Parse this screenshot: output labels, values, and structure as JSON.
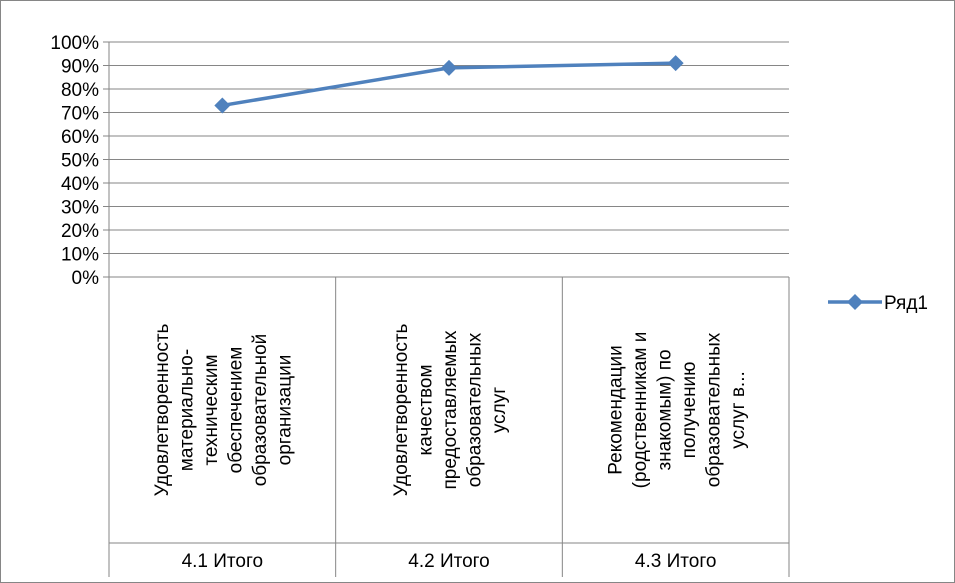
{
  "chart_data": {
    "type": "line",
    "categories": [
      {
        "lines": [
          "Удовлетворенность",
          "материально-",
          "техническим",
          "обеспечением",
          "образовательной",
          "организации"
        ],
        "group": "4.1 Итого"
      },
      {
        "lines": [
          "Удовлетворенность",
          "качеством",
          "предоставляемых",
          "образовательных",
          "услуг"
        ],
        "group": "4.2 Итого"
      },
      {
        "lines": [
          "Рекомендации",
          "(родственникам и",
          "знакомым) по",
          "получению",
          "образовательных",
          "услуг в..."
        ],
        "group": "4.3 Итого"
      }
    ],
    "series": [
      {
        "name": "Ряд1",
        "values": [
          0.73,
          0.89,
          0.91
        ]
      }
    ],
    "y_tick_labels": [
      "0%",
      "10%",
      "20%",
      "30%",
      "40%",
      "50%",
      "60%",
      "70%",
      "80%",
      "90%",
      "100%"
    ],
    "ylim": [
      0,
      1
    ],
    "grid": true,
    "legend_position": "right",
    "colors": {
      "series": "#4F81BD",
      "grid": "#868686",
      "axis": "#868686",
      "border": "#868686"
    },
    "marker": "diamond"
  }
}
